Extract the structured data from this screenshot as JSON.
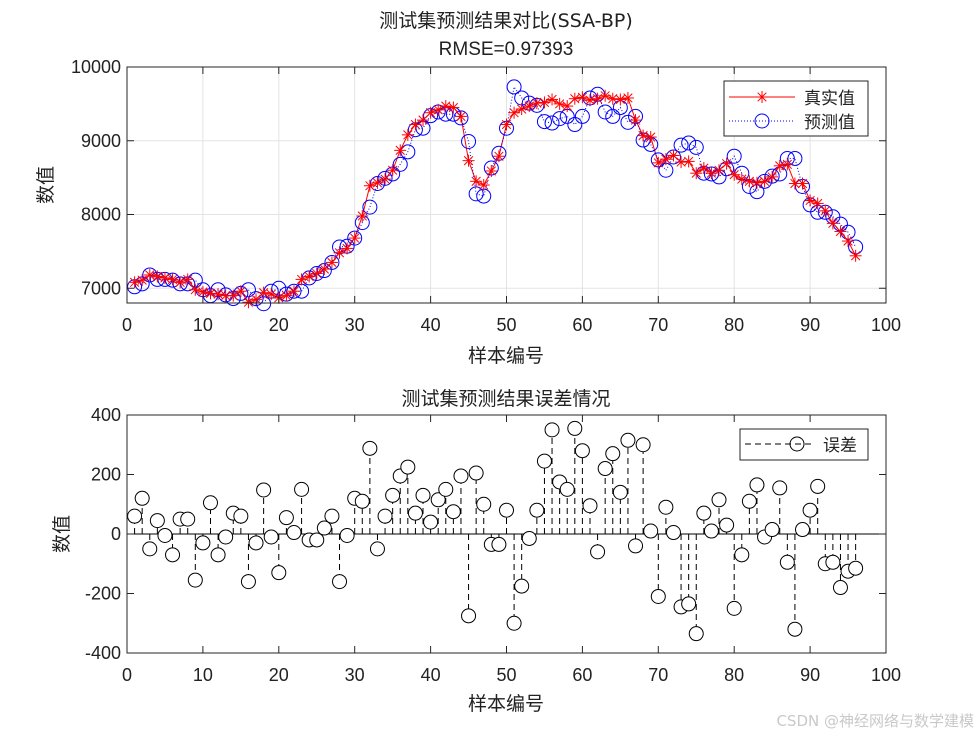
{
  "watermark": "CSDN @神经网络与数学建模",
  "chart_data": [
    {
      "type": "line",
      "title": "测试集预测结果对比(SSA-BP)",
      "subtitle": "RMSE=0.97393",
      "xlabel": "样本编号",
      "ylabel": "数值",
      "xlim": [
        0,
        100
      ],
      "ylim": [
        6800,
        10000
      ],
      "xticks": [
        0,
        10,
        20,
        30,
        40,
        50,
        60,
        70,
        80,
        90,
        100
      ],
      "yticks": [
        7000,
        8000,
        9000,
        10000
      ],
      "grid": true,
      "legend": "top-right",
      "x": [
        1,
        2,
        3,
        4,
        5,
        6,
        7,
        8,
        9,
        10,
        11,
        12,
        13,
        14,
        15,
        16,
        17,
        18,
        19,
        20,
        21,
        22,
        23,
        24,
        25,
        26,
        27,
        28,
        29,
        30,
        31,
        32,
        33,
        34,
        35,
        36,
        37,
        38,
        39,
        40,
        41,
        42,
        43,
        44,
        45,
        46,
        47,
        48,
        49,
        50,
        51,
        52,
        53,
        54,
        55,
        56,
        57,
        58,
        59,
        60,
        61,
        62,
        63,
        64,
        65,
        66,
        67,
        68,
        69,
        70,
        71,
        72,
        73,
        74,
        75,
        76,
        77,
        78,
        79,
        80,
        81,
        82,
        83,
        84,
        85,
        86,
        87,
        88,
        89,
        90,
        91,
        92,
        93,
        94,
        95,
        96
      ],
      "series": [
        {
          "name": "真实值",
          "color": "#ff0000",
          "marker": "asterisk",
          "values": [
            7080,
            7110,
            7180,
            7160,
            7140,
            7120,
            7080,
            7120,
            6980,
            6950,
            6930,
            6920,
            6900,
            6900,
            6960,
            6810,
            6850,
            6940,
            6920,
            6870,
            6900,
            6960,
            7120,
            7160,
            7200,
            7260,
            7350,
            7480,
            7540,
            7680,
            7980,
            8390,
            8430,
            8480,
            8600,
            8870,
            9080,
            9220,
            9280,
            9380,
            9420,
            9470,
            9450,
            9330,
            8730,
            8450,
            8400,
            8590,
            8790,
            9220,
            9380,
            9430,
            9470,
            9510,
            9520,
            9560,
            9500,
            9470,
            9570,
            9590,
            9550,
            9570,
            9610,
            9570,
            9560,
            9580,
            9280,
            9070,
            9050,
            8700,
            8750,
            8800,
            8710,
            8720,
            8560,
            8630,
            8560,
            8600,
            8690,
            8540,
            8480,
            8450,
            8430,
            8450,
            8510,
            8660,
            8680,
            8420,
            8420,
            8190,
            8150,
            8050,
            7880,
            7770,
            7640,
            7440
          ]
        },
        {
          "name": "预测值",
          "color": "#0000ff",
          "marker": "circle",
          "values": [
            7020,
            7060,
            7180,
            7120,
            7120,
            7110,
            7060,
            7060,
            7110,
            6980,
            6900,
            6980,
            6910,
            6860,
            6930,
            6980,
            6860,
            6790,
            6960,
            7000,
            6920,
            6960,
            6960,
            7140,
            7200,
            7240,
            7350,
            7560,
            7570,
            7680,
            7890,
            8100,
            8420,
            8490,
            8550,
            8680,
            8850,
            9150,
            9170,
            9340,
            9390,
            9360,
            9360,
            9310,
            8990,
            8280,
            8250,
            8630,
            8830,
            9170,
            9730,
            9580,
            9510,
            9480,
            9260,
            9240,
            9300,
            9330,
            9220,
            9330,
            9580,
            9630,
            9390,
            9330,
            9450,
            9250,
            9330,
            9010,
            8950,
            8740,
            8600,
            8780,
            8940,
            8970,
            8910,
            8560,
            8550,
            8510,
            8620,
            8790,
            8560,
            8380,
            8310,
            8450,
            8520,
            8550,
            8760,
            8760,
            8380,
            8130,
            8030,
            8030,
            7970,
            7870,
            7760,
            7560
          ]
        }
      ]
    },
    {
      "type": "stem",
      "title": "测试集预测结果误差情况",
      "xlabel": "样本编号",
      "ylabel": "数值",
      "xlim": [
        0,
        100
      ],
      "ylim": [
        -400,
        400
      ],
      "xticks": [
        0,
        10,
        20,
        30,
        40,
        50,
        60,
        70,
        80,
        90,
        100
      ],
      "yticks": [
        -400,
        -200,
        0,
        200,
        400
      ],
      "grid": false,
      "legend": "top-right",
      "x": [
        1,
        2,
        3,
        4,
        5,
        6,
        7,
        8,
        9,
        10,
        11,
        12,
        13,
        14,
        15,
        16,
        17,
        18,
        19,
        20,
        21,
        22,
        23,
        24,
        25,
        26,
        27,
        28,
        29,
        30,
        31,
        32,
        33,
        34,
        35,
        36,
        37,
        38,
        39,
        40,
        41,
        42,
        43,
        44,
        45,
        46,
        47,
        48,
        49,
        50,
        51,
        52,
        53,
        54,
        55,
        56,
        57,
        58,
        59,
        60,
        61,
        62,
        63,
        64,
        65,
        66,
        67,
        68,
        69,
        70,
        71,
        72,
        73,
        74,
        75,
        76,
        77,
        78,
        79,
        80,
        81,
        82,
        83,
        84,
        85,
        86,
        87,
        88,
        89,
        90,
        91,
        92,
        93,
        94,
        95,
        96
      ],
      "series": [
        {
          "name": "误差",
          "color": "#000000",
          "marker": "circle",
          "values": [
            60,
            120,
            -50,
            45,
            -5,
            -70,
            50,
            50,
            -155,
            -30,
            105,
            -70,
            -10,
            70,
            60,
            -160,
            -30,
            148,
            -10,
            -130,
            55,
            5,
            150,
            -20,
            -20,
            20,
            60,
            -160,
            -5,
            120,
            110,
            288,
            -50,
            60,
            130,
            195,
            225,
            70,
            130,
            40,
            115,
            150,
            75,
            195,
            -275,
            205,
            100,
            -35,
            -35,
            80,
            -300,
            -175,
            -15,
            80,
            245,
            350,
            175,
            150,
            355,
            280,
            95,
            -60,
            220,
            270,
            140,
            315,
            -40,
            300,
            10,
            -210,
            90,
            5,
            -245,
            -235,
            -335,
            70,
            10,
            115,
            30,
            -250,
            -70,
            110,
            165,
            -10,
            15,
            155,
            -95,
            -320,
            15,
            80,
            160,
            -100,
            -95,
            -180,
            -125,
            -115
          ]
        }
      ]
    }
  ]
}
